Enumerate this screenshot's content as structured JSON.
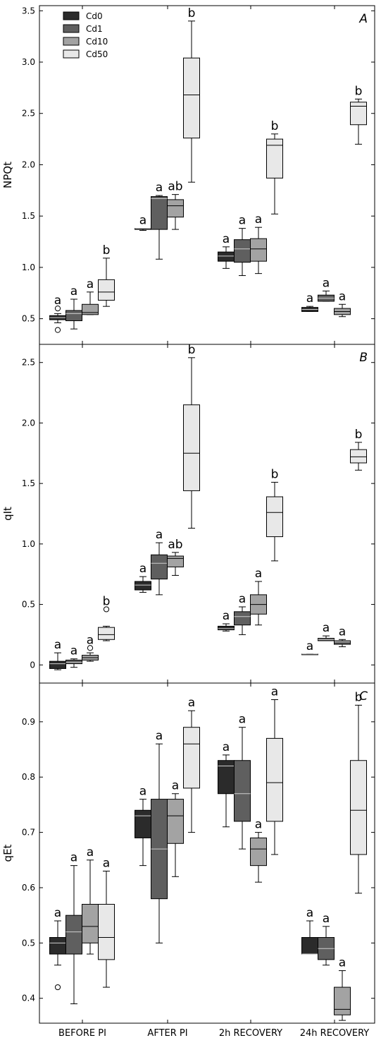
{
  "chart_data": {
    "type": "box",
    "categories": [
      "BEFORE PI",
      "AFTER PI",
      "2h RECOVERY",
      "24h RECOVERY"
    ],
    "legend": {
      "placement": "top-left",
      "entries": [
        {
          "name": "Cd0",
          "color": "#2b2b2b"
        },
        {
          "name": "Cd1",
          "color": "#5f5f5f"
        },
        {
          "name": "Cd10",
          "color": "#a3a3a3"
        },
        {
          "name": "Cd50",
          "color": "#e8e8e8"
        }
      ]
    },
    "panels": [
      {
        "letter": "A",
        "ylabel": "NPQt",
        "ylim": [
          0.25,
          3.55
        ],
        "yticks": [
          0.5,
          1.0,
          1.5,
          2.0,
          2.5,
          3.0,
          3.5
        ],
        "ytick_labels": [
          "0.5",
          "1.0",
          "1.5",
          "2.0",
          "2.5",
          "3.0",
          "3.5"
        ],
        "groups": [
          {
            "category": "BEFORE PI",
            "boxes": [
              {
                "series": "Cd0",
                "min": 0.46,
                "q1": 0.49,
                "median": 0.51,
                "q3": 0.53,
                "max": 0.55,
                "outliers": [
                  0.39,
                  0.6
                ],
                "label": "a"
              },
              {
                "series": "Cd1",
                "min": 0.4,
                "q1": 0.48,
                "median": 0.55,
                "q3": 0.58,
                "max": 0.69,
                "outliers": [],
                "label": "a"
              },
              {
                "series": "Cd10",
                "min": 0.54,
                "q1": 0.54,
                "median": 0.56,
                "q3": 0.64,
                "max": 0.76,
                "outliers": [],
                "label": "a"
              },
              {
                "series": "Cd50",
                "min": 0.62,
                "q1": 0.68,
                "median": 0.76,
                "q3": 0.88,
                "max": 1.09,
                "outliers": [],
                "label": "b"
              }
            ]
          },
          {
            "category": "AFTER PI",
            "boxes": [
              {
                "series": "Cd0",
                "min": 1.36,
                "q1": 1.37,
                "median": 1.38,
                "q3": 1.38,
                "max": 1.38,
                "outliers": [],
                "label": "a"
              },
              {
                "series": "Cd1",
                "min": 1.08,
                "q1": 1.37,
                "median": 1.67,
                "q3": 1.69,
                "max": 1.7,
                "outliers": [],
                "label": "a"
              },
              {
                "series": "Cd10",
                "min": 1.37,
                "q1": 1.49,
                "median": 1.6,
                "q3": 1.66,
                "max": 1.71,
                "outliers": [],
                "label": "ab"
              },
              {
                "series": "Cd50",
                "min": 1.83,
                "q1": 2.26,
                "median": 2.68,
                "q3": 3.04,
                "max": 3.4,
                "outliers": [],
                "label": "b"
              }
            ]
          },
          {
            "category": "2h RECOVERY",
            "boxes": [
              {
                "series": "Cd0",
                "min": 0.99,
                "q1": 1.06,
                "median": 1.11,
                "q3": 1.15,
                "max": 1.2,
                "outliers": [],
                "label": "a"
              },
              {
                "series": "Cd1",
                "min": 0.92,
                "q1": 1.05,
                "median": 1.18,
                "q3": 1.27,
                "max": 1.38,
                "outliers": [],
                "label": "a"
              },
              {
                "series": "Cd10",
                "min": 0.94,
                "q1": 1.06,
                "median": 1.18,
                "q3": 1.28,
                "max": 1.39,
                "outliers": [],
                "label": "a"
              },
              {
                "series": "Cd50",
                "min": 1.52,
                "q1": 1.87,
                "median": 2.19,
                "q3": 2.25,
                "max": 2.3,
                "outliers": [],
                "label": "b"
              }
            ]
          },
          {
            "category": "24h RECOVERY",
            "boxes": [
              {
                "series": "Cd0",
                "min": 0.57,
                "q1": 0.57,
                "median": 0.59,
                "q3": 0.61,
                "max": 0.62,
                "outliers": [],
                "label": "a"
              },
              {
                "series": "Cd1",
                "min": 0.67,
                "q1": 0.67,
                "median": 0.7,
                "q3": 0.73,
                "max": 0.77,
                "outliers": [],
                "label": "a"
              },
              {
                "series": "Cd10",
                "min": 0.52,
                "q1": 0.54,
                "median": 0.57,
                "q3": 0.6,
                "max": 0.64,
                "outliers": [],
                "label": "a"
              },
              {
                "series": "Cd50",
                "min": 2.2,
                "q1": 2.39,
                "median": 2.57,
                "q3": 2.61,
                "max": 2.64,
                "outliers": [],
                "label": "b"
              }
            ]
          }
        ]
      },
      {
        "letter": "B",
        "ylabel": "qIt",
        "ylim": [
          -0.15,
          2.65
        ],
        "yticks": [
          0,
          0.5,
          1.0,
          1.5,
          2.0,
          2.5
        ],
        "ytick_labels": [
          "0",
          "0.5",
          "1.0",
          "1.5",
          "2.0",
          "2.5"
        ],
        "groups": [
          {
            "category": "BEFORE PI",
            "boxes": [
              {
                "series": "Cd0",
                "min": -0.04,
                "q1": -0.03,
                "median": 0.01,
                "q3": 0.03,
                "max": 0.1,
                "outliers": [],
                "label": "a"
              },
              {
                "series": "Cd1",
                "min": -0.02,
                "q1": 0.01,
                "median": 0.02,
                "q3": 0.04,
                "max": 0.05,
                "outliers": [],
                "label": "a"
              },
              {
                "series": "Cd10",
                "min": 0.03,
                "q1": 0.04,
                "median": 0.06,
                "q3": 0.08,
                "max": 0.1,
                "outliers": [
                  0.14
                ],
                "label": "a"
              },
              {
                "series": "Cd50",
                "min": 0.2,
                "q1": 0.21,
                "median": 0.25,
                "q3": 0.31,
                "max": 0.32,
                "outliers": [
                  0.46
                ],
                "label": "b"
              }
            ]
          },
          {
            "category": "AFTER PI",
            "boxes": [
              {
                "series": "Cd0",
                "min": 0.6,
                "q1": 0.62,
                "median": 0.66,
                "q3": 0.69,
                "max": 0.73,
                "outliers": [],
                "label": "a"
              },
              {
                "series": "Cd1",
                "min": 0.58,
                "q1": 0.71,
                "median": 0.84,
                "q3": 0.91,
                "max": 1.01,
                "outliers": [],
                "label": "a"
              },
              {
                "series": "Cd10",
                "min": 0.74,
                "q1": 0.81,
                "median": 0.88,
                "q3": 0.9,
                "max": 0.93,
                "outliers": [],
                "label": "ab"
              },
              {
                "series": "Cd50",
                "min": 1.13,
                "q1": 1.44,
                "median": 1.75,
                "q3": 2.15,
                "max": 2.54,
                "outliers": [],
                "label": "b"
              }
            ]
          },
          {
            "category": "2h RECOVERY",
            "boxes": [
              {
                "series": "Cd0",
                "min": 0.28,
                "q1": 0.29,
                "median": 0.3,
                "q3": 0.32,
                "max": 0.34,
                "outliers": [],
                "label": "a"
              },
              {
                "series": "Cd1",
                "min": 0.25,
                "q1": 0.33,
                "median": 0.4,
                "q3": 0.44,
                "max": 0.48,
                "outliers": [],
                "label": "a"
              },
              {
                "series": "Cd10",
                "min": 0.33,
                "q1": 0.42,
                "median": 0.5,
                "q3": 0.58,
                "max": 0.69,
                "outliers": [],
                "label": "a"
              },
              {
                "series": "Cd50",
                "min": 0.86,
                "q1": 1.06,
                "median": 1.26,
                "q3": 1.39,
                "max": 1.51,
                "outliers": [],
                "label": "b"
              }
            ]
          },
          {
            "category": "24h RECOVERY",
            "boxes": [
              {
                "series": "Cd0",
                "min": 0.09,
                "q1": 0.09,
                "median": 0.09,
                "q3": 0.09,
                "max": 0.09,
                "outliers": [],
                "label": "a"
              },
              {
                "series": "Cd1",
                "min": 0.2,
                "q1": 0.2,
                "median": 0.21,
                "q3": 0.22,
                "max": 0.24,
                "outliers": [],
                "label": "a"
              },
              {
                "series": "Cd10",
                "min": 0.15,
                "q1": 0.17,
                "median": 0.18,
                "q3": 0.2,
                "max": 0.21,
                "outliers": [],
                "label": "a"
              },
              {
                "series": "Cd50",
                "min": 1.61,
                "q1": 1.67,
                "median": 1.72,
                "q3": 1.78,
                "max": 1.84,
                "outliers": [],
                "label": "b"
              }
            ]
          }
        ]
      },
      {
        "letter": "C",
        "ylabel": "qEt",
        "ylim": [
          0.355,
          0.97
        ],
        "yticks": [
          0.4,
          0.5,
          0.6,
          0.7,
          0.8,
          0.9
        ],
        "ytick_labels": [
          "0.4",
          "0.5",
          "0.6",
          "0.7",
          "0.8",
          "0.9"
        ],
        "groups": [
          {
            "category": "BEFORE PI",
            "boxes": [
              {
                "series": "Cd0",
                "min": 0.46,
                "q1": 0.48,
                "median": 0.5,
                "q3": 0.51,
                "max": 0.54,
                "outliers": [
                  0.42
                ],
                "label": "a"
              },
              {
                "series": "Cd1",
                "min": 0.39,
                "q1": 0.48,
                "median": 0.52,
                "q3": 0.55,
                "max": 0.64,
                "outliers": [],
                "label": "a"
              },
              {
                "series": "Cd10",
                "min": 0.48,
                "q1": 0.5,
                "median": 0.53,
                "q3": 0.57,
                "max": 0.65,
                "outliers": [],
                "label": "a"
              },
              {
                "series": "Cd50",
                "min": 0.42,
                "q1": 0.47,
                "median": 0.51,
                "q3": 0.57,
                "max": 0.63,
                "outliers": [],
                "label": "a"
              }
            ]
          },
          {
            "category": "AFTER PI",
            "boxes": [
              {
                "series": "Cd0",
                "min": 0.64,
                "q1": 0.69,
                "median": 0.73,
                "q3": 0.74,
                "max": 0.76,
                "outliers": [],
                "label": "a"
              },
              {
                "series": "Cd1",
                "min": 0.5,
                "q1": 0.58,
                "median": 0.67,
                "q3": 0.76,
                "max": 0.86,
                "outliers": [],
                "label": "a"
              },
              {
                "series": "Cd10",
                "min": 0.62,
                "q1": 0.68,
                "median": 0.73,
                "q3": 0.76,
                "max": 0.77,
                "outliers": [],
                "label": "a"
              },
              {
                "series": "Cd50",
                "min": 0.7,
                "q1": 0.78,
                "median": 0.86,
                "q3": 0.89,
                "max": 0.92,
                "outliers": [],
                "label": "a"
              }
            ]
          },
          {
            "category": "2h RECOVERY",
            "boxes": [
              {
                "series": "Cd0",
                "min": 0.71,
                "q1": 0.77,
                "median": 0.82,
                "q3": 0.83,
                "max": 0.84,
                "outliers": [],
                "label": "a"
              },
              {
                "series": "Cd1",
                "min": 0.67,
                "q1": 0.72,
                "median": 0.77,
                "q3": 0.83,
                "max": 0.89,
                "outliers": [],
                "label": "a"
              },
              {
                "series": "Cd10",
                "min": 0.61,
                "q1": 0.64,
                "median": 0.67,
                "q3": 0.69,
                "max": 0.7,
                "outliers": [],
                "label": "a"
              },
              {
                "series": "Cd50",
                "min": 0.66,
                "q1": 0.72,
                "median": 0.79,
                "q3": 0.87,
                "max": 0.94,
                "outliers": [],
                "label": "a"
              }
            ]
          },
          {
            "category": "24h RECOVERY",
            "boxes": [
              {
                "series": "Cd0",
                "min": 0.48,
                "q1": 0.48,
                "median": 0.48,
                "q3": 0.51,
                "max": 0.54,
                "outliers": [],
                "label": "a"
              },
              {
                "series": "Cd1",
                "min": 0.46,
                "q1": 0.47,
                "median": 0.49,
                "q3": 0.51,
                "max": 0.53,
                "outliers": [],
                "label": "a"
              },
              {
                "series": "Cd10",
                "min": 0.36,
                "q1": 0.37,
                "median": 0.38,
                "q3": 0.42,
                "max": 0.45,
                "outliers": [],
                "label": "a"
              },
              {
                "series": "Cd50",
                "min": 0.59,
                "q1": 0.66,
                "median": 0.74,
                "q3": 0.83,
                "max": 0.93,
                "outliers": [],
                "label": "b"
              }
            ]
          }
        ]
      }
    ]
  }
}
